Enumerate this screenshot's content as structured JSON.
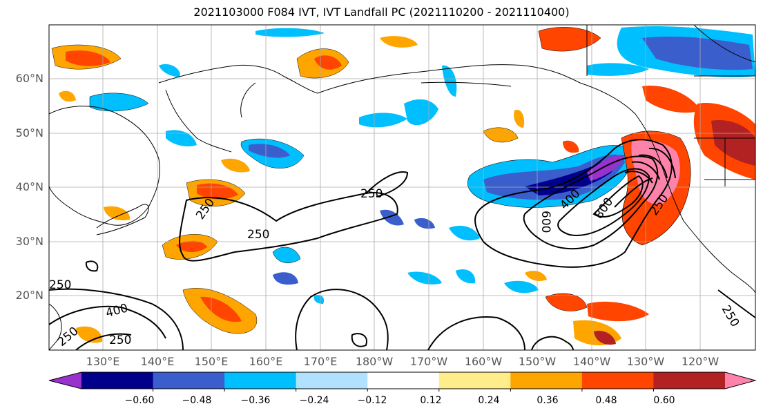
{
  "title": "2021103000 F084 IVT, IVT Landfall PC (2021110200 - 2021110400)",
  "lat_labels": [
    "60°N",
    "50°N",
    "40°N",
    "30°N",
    "20°N"
  ],
  "lon_labels": [
    "130°E",
    "140°E",
    "150°E",
    "160°E",
    "170°E",
    "180°W",
    "170°W",
    "160°W",
    "150°W",
    "140°W",
    "130°W",
    "120°W"
  ],
  "contour_labels": [
    "250",
    "250",
    "250",
    "250",
    "250",
    "250",
    "400",
    "400",
    "600",
    "800",
    "250",
    "250"
  ],
  "colorbar": {
    "ticks": [
      "−0.60",
      "−0.48",
      "−0.36",
      "−0.24",
      "−0.12",
      "0.12",
      "0.24",
      "0.36",
      "0.48",
      "0.60"
    ],
    "colors": [
      "#9932cc",
      "#00008b",
      "#3a5fcd",
      "#00bfff",
      "#b0e2ff",
      "#ffffff",
      "#ffec8b",
      "#ffa500",
      "#ff4500",
      "#b22222",
      "#ff82ab"
    ]
  }
}
